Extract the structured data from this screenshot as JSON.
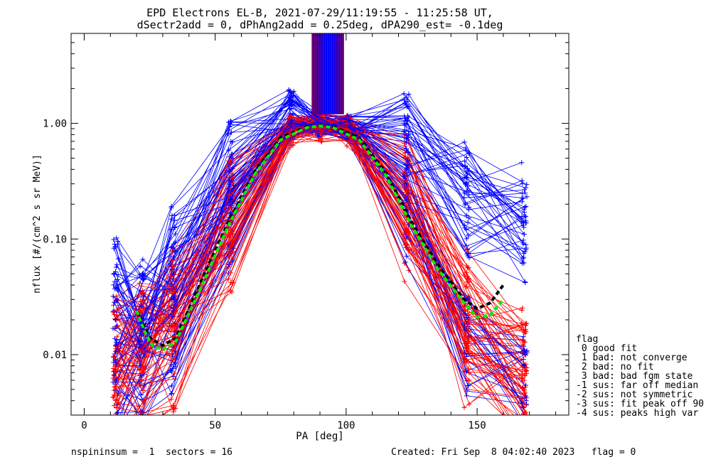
{
  "chart_data": {
    "type": "line",
    "title_line1": "EPD Electrons EL-B, 2021-07-29/11:19:55 - 11:25:58 UT,",
    "title_line2": "dSectr2add = 0, dPhAng2add = 0.25deg, dPA290_est=  -0.1deg",
    "xlabel": "PA [deg]",
    "ylabel": "nflux [#/(cm^2 s sr MeV)]",
    "x_range": [
      -5,
      185
    ],
    "y_range": [
      0.003,
      6.0
    ],
    "y_scale": "log",
    "x_ticks": [
      0,
      50,
      100,
      150
    ],
    "x_tick_labels": [
      "0",
      "50",
      "100",
      "150"
    ],
    "y_ticks": [
      0.01,
      0.1,
      1.0
    ],
    "y_tick_labels": [
      "0.01",
      "0.10",
      "1.00"
    ],
    "pa_bins": [
      12,
      22,
      34,
      56,
      79,
      90,
      101,
      123,
      146,
      168
    ],
    "series": [
      {
        "color": "#0000ff",
        "values": [
          0.009,
          0.012,
          0.024,
          0.16,
          0.93,
          0.97,
          0.92,
          0.22,
          0.021,
          0.008
        ]
      },
      {
        "color": "#ff0000",
        "values": [
          0.005,
          0.007,
          0.011,
          0.12,
          0.88,
          0.94,
          0.86,
          0.16,
          0.012,
          0.006
        ]
      },
      {
        "color": "#ff0000",
        "values": [
          0.004,
          0.006,
          0.009,
          0.09,
          0.78,
          0.84,
          0.78,
          0.12,
          0.009,
          0.0045
        ]
      },
      {
        "color": "#0000ff",
        "values": [
          0.012,
          0.016,
          0.032,
          0.22,
          0.96,
          1.0,
          0.95,
          0.3,
          0.03,
          0.011
        ]
      },
      {
        "color": "#0000ff",
        "values": [
          0.038,
          0.026,
          0.07,
          0.52,
          1.6,
          1.0,
          0.95,
          0.74,
          0.3,
          0.17
        ]
      },
      {
        "color": "#0000ff",
        "values": [
          0.02,
          0.022,
          0.05,
          0.4,
          1.0,
          0.98,
          0.96,
          0.6,
          0.16,
          0.11
        ]
      }
    ],
    "black_dashed_fit": {
      "color": "#000000",
      "x": [
        20,
        25,
        30,
        35,
        45,
        55,
        65,
        75,
        85,
        90,
        95,
        105,
        115,
        125,
        135,
        145,
        150,
        155,
        160
      ],
      "y": [
        0.024,
        0.014,
        0.012,
        0.014,
        0.045,
        0.14,
        0.38,
        0.75,
        0.94,
        0.96,
        0.94,
        0.75,
        0.38,
        0.14,
        0.06,
        0.03,
        0.025,
        0.028,
        0.04
      ]
    },
    "green_dashed_fit": {
      "color": "#00ee00",
      "x": [
        20,
        23,
        26,
        30,
        35,
        45,
        55,
        65,
        75,
        85,
        90,
        95,
        105,
        115,
        125,
        135,
        145,
        150,
        155,
        160
      ],
      "y": [
        0.024,
        0.016,
        0.012,
        0.011,
        0.013,
        0.04,
        0.13,
        0.36,
        0.72,
        0.92,
        0.95,
        0.92,
        0.72,
        0.36,
        0.13,
        0.055,
        0.028,
        0.021,
        0.022,
        0.03
      ]
    },
    "peak_bars_x_range": [
      87,
      99
    ]
  },
  "legend": {
    "title": "flag",
    "entries": [
      " 0 good fit",
      " 1 bad: not converge",
      " 2 bad: no fit",
      " 3 bad: bad fgm state",
      "-1 sus: far off median",
      "-2 sus: not symmetric",
      "-3 sus: fit peak off 90",
      "-4 sus: peaks high var"
    ]
  },
  "footer": {
    "left": "nspininsum =  1  sectors = 16",
    "right": "Created: Fri Sep  8 04:02:40 2023   flag = 0"
  }
}
